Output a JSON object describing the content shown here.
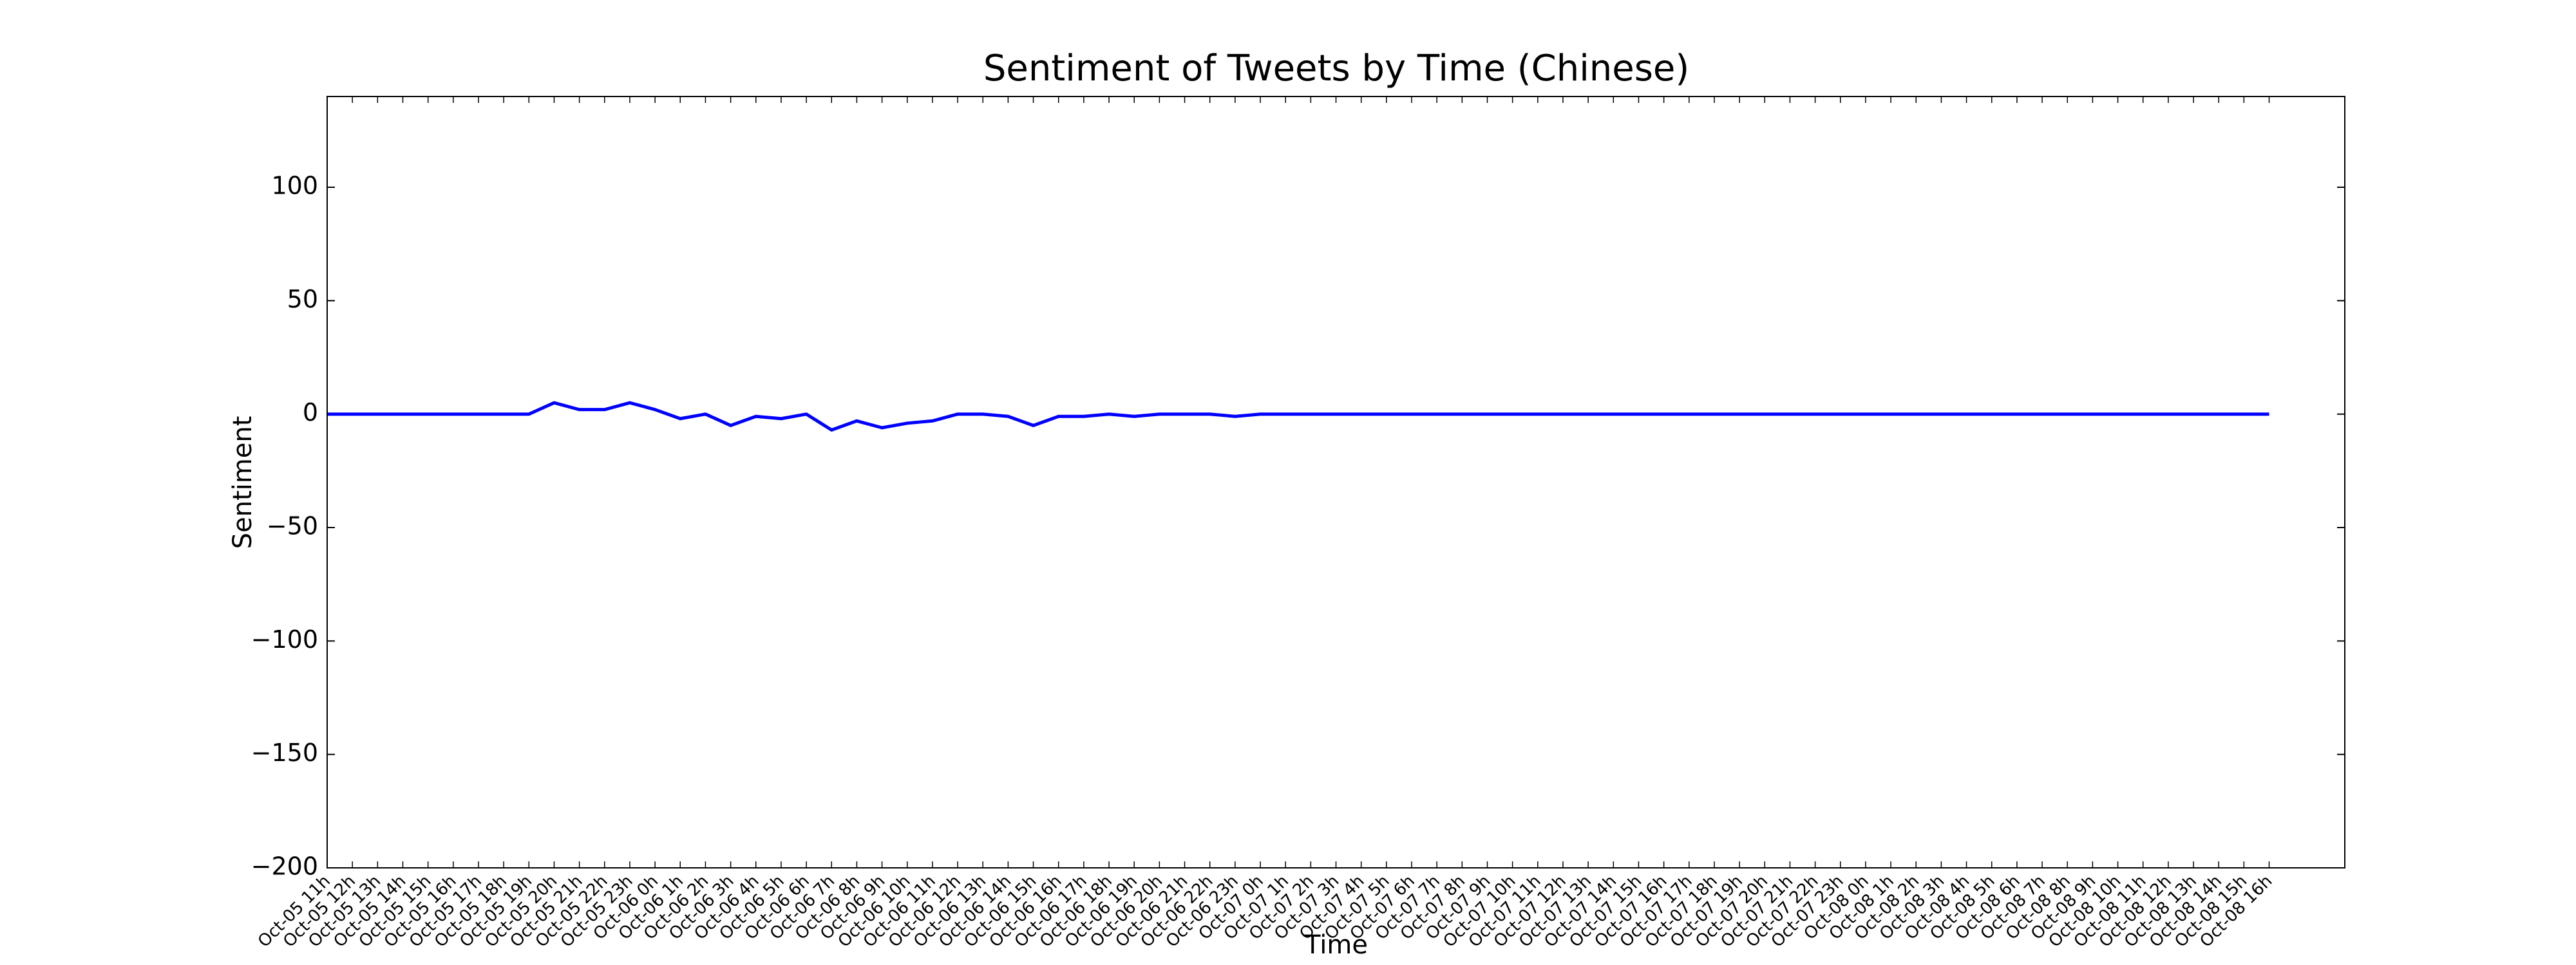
{
  "chart_data": {
    "type": "line",
    "title": "Sentiment of Tweets by Time (Chinese)",
    "x_label": "Time",
    "y_label": "Sentiment",
    "categories": [
      "Oct-05 11h",
      "Oct-05 12h",
      "Oct-05 13h",
      "Oct-05 14h",
      "Oct-05 15h",
      "Oct-05 16h",
      "Oct-05 17h",
      "Oct-05 18h",
      "Oct-05 19h",
      "Oct-05 20h",
      "Oct-05 21h",
      "Oct-05 22h",
      "Oct-05 23h",
      "Oct-06 0h",
      "Oct-06 1h",
      "Oct-06 2h",
      "Oct-06 3h",
      "Oct-06 4h",
      "Oct-06 5h",
      "Oct-06 6h",
      "Oct-06 7h",
      "Oct-06 8h",
      "Oct-06 9h",
      "Oct-06 10h",
      "Oct-06 11h",
      "Oct-06 12h",
      "Oct-06 13h",
      "Oct-06 14h",
      "Oct-06 15h",
      "Oct-06 16h",
      "Oct-06 17h",
      "Oct-06 18h",
      "Oct-06 19h",
      "Oct-06 20h",
      "Oct-06 21h",
      "Oct-06 22h",
      "Oct-06 23h",
      "Oct-07 0h",
      "Oct-07 1h",
      "Oct-07 2h",
      "Oct-07 3h",
      "Oct-07 4h",
      "Oct-07 5h",
      "Oct-07 6h",
      "Oct-07 7h",
      "Oct-07 8h",
      "Oct-07 9h",
      "Oct-07 10h",
      "Oct-07 11h",
      "Oct-07 12h",
      "Oct-07 13h",
      "Oct-07 14h",
      "Oct-07 15h",
      "Oct-07 16h",
      "Oct-07 17h",
      "Oct-07 18h",
      "Oct-07 19h",
      "Oct-07 20h",
      "Oct-07 21h",
      "Oct-07 22h",
      "Oct-07 23h",
      "Oct-08 0h",
      "Oct-08 1h",
      "Oct-08 2h",
      "Oct-08 3h",
      "Oct-08 4h",
      "Oct-08 5h",
      "Oct-08 6h",
      "Oct-08 7h",
      "Oct-08 8h",
      "Oct-08 9h",
      "Oct-08 10h",
      "Oct-08 11h",
      "Oct-08 12h",
      "Oct-08 13h",
      "Oct-08 14h",
      "Oct-08 15h",
      "Oct-08 16h"
    ],
    "series": [
      {
        "name": "Sentiment",
        "color": "#0000ff",
        "values": [
          0,
          0,
          0,
          0,
          0,
          0,
          0,
          0,
          0,
          5,
          2,
          2,
          5,
          2,
          -2,
          0,
          -5,
          -1,
          -2,
          0,
          -7,
          -3,
          -6,
          -4,
          -3,
          0,
          0,
          -1,
          -5,
          -1,
          -1,
          0,
          -1,
          0,
          0,
          0,
          -1,
          0,
          0,
          0,
          0,
          0,
          0,
          0,
          0,
          0,
          0,
          0,
          0,
          0,
          0,
          0,
          0,
          0,
          0,
          0,
          0,
          0,
          0,
          0,
          0,
          0,
          0,
          0,
          0,
          0,
          0,
          0,
          0,
          0,
          0,
          0,
          0,
          0,
          0,
          0,
          0,
          0
        ]
      }
    ],
    "xlim": [
      0,
      80
    ],
    "ylim": [
      -200,
      140
    ],
    "yticks": [
      {
        "value": -200,
        "label": "−200"
      },
      {
        "value": -150,
        "label": "−150"
      },
      {
        "value": -100,
        "label": "−100"
      },
      {
        "value": -50,
        "label": "−50"
      },
      0,
      50,
      100
    ]
  }
}
